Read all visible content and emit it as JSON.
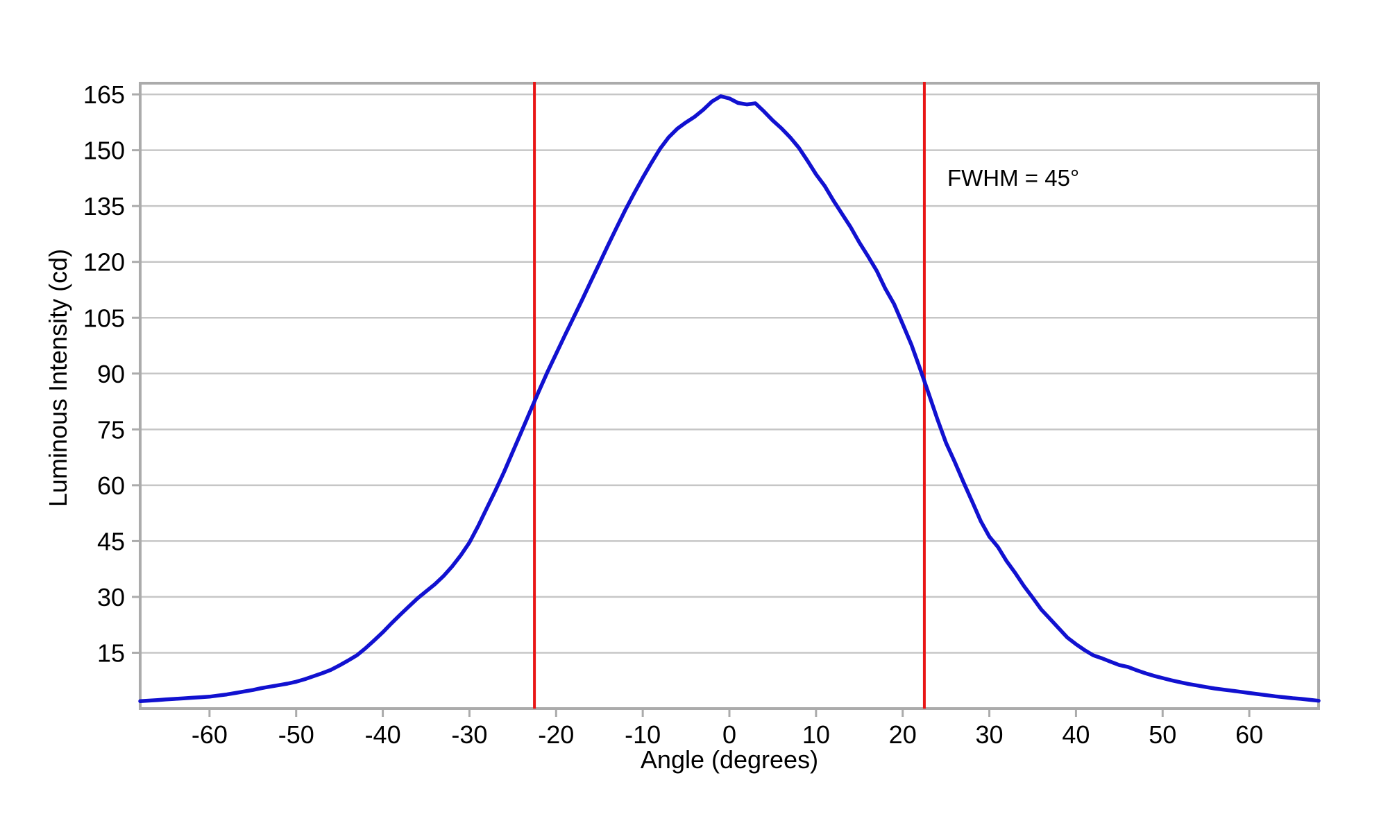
{
  "chart_data": {
    "type": "line",
    "title": "",
    "xlabel": "Angle (degrees)",
    "ylabel": "Luminous Intensity (cd)",
    "xlim": [
      -68,
      68
    ],
    "ylim": [
      0,
      168
    ],
    "x_ticks": [
      -60,
      -50,
      -40,
      -30,
      -20,
      -10,
      0,
      10,
      20,
      30,
      40,
      50,
      60
    ],
    "y_ticks": [
      15,
      30,
      45,
      60,
      75,
      90,
      105,
      120,
      135,
      150,
      165
    ],
    "grid": "horizontal-only",
    "legend": "none",
    "colors": {
      "curve": "#1111d0",
      "reference": "#e81616",
      "gridline": "#c6c6c6",
      "border": "#ababab",
      "text": "#000000",
      "background": "#ffffff"
    },
    "series": [
      {
        "name": "luminous-intensity",
        "color": "#1111d0",
        "points": [
          [
            -68,
            2.0
          ],
          [
            -67,
            2.15
          ],
          [
            -66,
            2.3
          ],
          [
            -65,
            2.45
          ],
          [
            -64,
            2.6
          ],
          [
            -63,
            2.75
          ],
          [
            -62,
            2.9
          ],
          [
            -61,
            3.05
          ],
          [
            -60,
            3.2
          ],
          [
            -59,
            3.5
          ],
          [
            -58,
            3.8
          ],
          [
            -57,
            4.2
          ],
          [
            -56,
            4.6
          ],
          [
            -55,
            5.0
          ],
          [
            -54,
            5.5
          ],
          [
            -53,
            5.9
          ],
          [
            -52,
            6.3
          ],
          [
            -51,
            6.7
          ],
          [
            -50,
            7.2
          ],
          [
            -49,
            7.9
          ],
          [
            -48,
            8.7
          ],
          [
            -47,
            9.5
          ],
          [
            -46,
            10.4
          ],
          [
            -45,
            11.6
          ],
          [
            -44,
            12.9
          ],
          [
            -43,
            14.3
          ],
          [
            -42,
            16.2
          ],
          [
            -41,
            18.3
          ],
          [
            -40,
            20.5
          ],
          [
            -39,
            22.9
          ],
          [
            -38,
            25.2
          ],
          [
            -37,
            27.4
          ],
          [
            -36,
            29.6
          ],
          [
            -35,
            31.5
          ],
          [
            -34,
            33.4
          ],
          [
            -33,
            35.6
          ],
          [
            -32,
            38.2
          ],
          [
            -31,
            41.2
          ],
          [
            -30,
            44.6
          ],
          [
            -29,
            49.0
          ],
          [
            -28,
            53.8
          ],
          [
            -27,
            58.6
          ],
          [
            -26,
            63.6
          ],
          [
            -25,
            69.0
          ],
          [
            -24,
            74.4
          ],
          [
            -23,
            79.8
          ],
          [
            -22,
            85.2
          ],
          [
            -21,
            90.4
          ],
          [
            -20,
            95.3
          ],
          [
            -19,
            100.2
          ],
          [
            -18,
            105.0
          ],
          [
            -17,
            109.8
          ],
          [
            -16,
            114.7
          ],
          [
            -15,
            119.6
          ],
          [
            -14,
            124.5
          ],
          [
            -13,
            129.3
          ],
          [
            -12,
            134.0
          ],
          [
            -11,
            138.4
          ],
          [
            -10,
            142.6
          ],
          [
            -9,
            146.6
          ],
          [
            -8,
            150.4
          ],
          [
            -7,
            153.5
          ],
          [
            -6,
            155.8
          ],
          [
            -5,
            157.5
          ],
          [
            -4,
            159.0
          ],
          [
            -3,
            160.9
          ],
          [
            -2,
            163.1
          ],
          [
            -1,
            164.5
          ],
          [
            0,
            163.9
          ],
          [
            1,
            162.7
          ],
          [
            2,
            162.3
          ],
          [
            3,
            162.6
          ],
          [
            4,
            160.4
          ],
          [
            5,
            158.0
          ],
          [
            6,
            155.9
          ],
          [
            7,
            153.5
          ],
          [
            8,
            150.7
          ],
          [
            9,
            147.2
          ],
          [
            10,
            143.5
          ],
          [
            11,
            140.4
          ],
          [
            12,
            136.5
          ],
          [
            13,
            132.9
          ],
          [
            14,
            129.3
          ],
          [
            15,
            125.2
          ],
          [
            16,
            121.5
          ],
          [
            17,
            117.6
          ],
          [
            18,
            112.8
          ],
          [
            19,
            108.7
          ],
          [
            20,
            103.3
          ],
          [
            21,
            97.8
          ],
          [
            22,
            91.3
          ],
          [
            23,
            84.6
          ],
          [
            24,
            77.8
          ],
          [
            25,
            71.4
          ],
          [
            26,
            66.3
          ],
          [
            27,
            60.9
          ],
          [
            28,
            55.7
          ],
          [
            29,
            50.4
          ],
          [
            30,
            46.2
          ],
          [
            31,
            43.4
          ],
          [
            32,
            39.6
          ],
          [
            33,
            36.4
          ],
          [
            34,
            32.9
          ],
          [
            35,
            29.8
          ],
          [
            36,
            26.6
          ],
          [
            37,
            24.1
          ],
          [
            38,
            21.6
          ],
          [
            39,
            19.1
          ],
          [
            40,
            17.3
          ],
          [
            41,
            15.7
          ],
          [
            42,
            14.3
          ],
          [
            43,
            13.5
          ],
          [
            44,
            12.6
          ],
          [
            45,
            11.7
          ],
          [
            46,
            11.2
          ],
          [
            47,
            10.3
          ],
          [
            48,
            9.5
          ],
          [
            49,
            8.8
          ],
          [
            50,
            8.2
          ],
          [
            51,
            7.6
          ],
          [
            52,
            7.1
          ],
          [
            53,
            6.6
          ],
          [
            54,
            6.2
          ],
          [
            55,
            5.8
          ],
          [
            56,
            5.4
          ],
          [
            57,
            5.1
          ],
          [
            58,
            4.8
          ],
          [
            59,
            4.5
          ],
          [
            60,
            4.2
          ],
          [
            61,
            3.9
          ],
          [
            62,
            3.6
          ],
          [
            63,
            3.3
          ],
          [
            64,
            3.05
          ],
          [
            65,
            2.8
          ],
          [
            66,
            2.6
          ],
          [
            67,
            2.35
          ],
          [
            68,
            2.1
          ]
        ]
      }
    ],
    "reference_lines": {
      "color": "#e81616",
      "x_values": [
        -22.5,
        22.5
      ]
    },
    "annotation": {
      "text": "FWHM = 45°"
    }
  }
}
